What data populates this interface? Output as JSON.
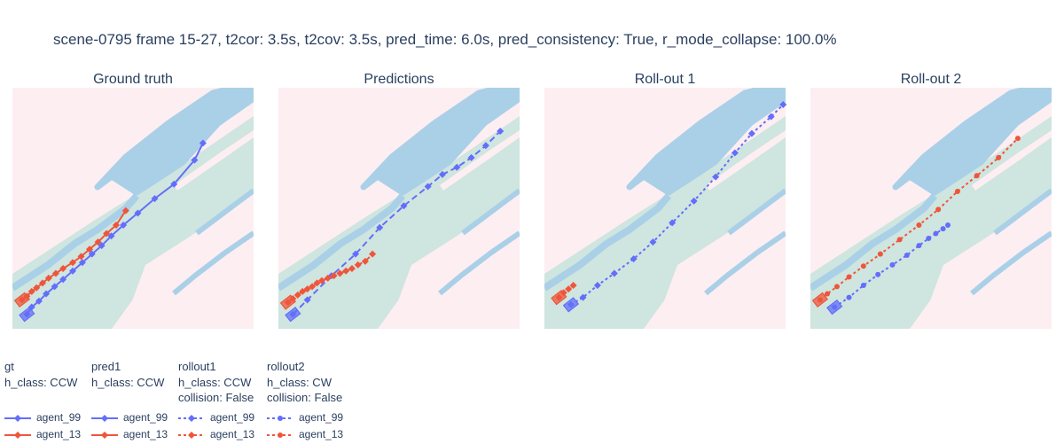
{
  "title": "scene-0795 frame 15-27, t2cor: 3.5s, t2cov: 3.5s, pred_time: 6.0s, pred_consistency: True, r_mode_collapse: 100.0%",
  "colors": {
    "agent_99": "#636efa",
    "agent_13": "#ef553b",
    "background": "#fdeef2",
    "drivable": "#cfe5df",
    "walkway": "#a9d0e7"
  },
  "chart_data": [
    {
      "type": "scatter",
      "title": "Ground truth",
      "xlim": [
        0,
        100
      ],
      "ylim": [
        0,
        100
      ],
      "grid": false,
      "series": [
        {
          "name": "agent_99",
          "line": "solid",
          "marker": "diamond",
          "x": [
            6,
            8,
            11,
            14,
            17.5,
            21,
            25,
            29,
            33,
            37,
            41,
            46,
            52,
            59,
            67,
            75.5,
            79
          ],
          "y": [
            6,
            9,
            11.5,
            14.5,
            17.5,
            20.5,
            24,
            27.5,
            31,
            34.5,
            38.5,
            43,
            48,
            54,
            60,
            70,
            77
          ]
        },
        {
          "name": "agent_13",
          "line": "solid",
          "marker": "diamond",
          "x": [
            4,
            6,
            8,
            10,
            12.5,
            15,
            18,
            21,
            25,
            28.5,
            32,
            35.5,
            39,
            43,
            47
          ],
          "y": [
            12,
            13.5,
            15.5,
            17,
            19,
            21,
            23,
            25,
            27.5,
            30,
            33,
            36,
            39.5,
            43,
            49
          ]
        }
      ]
    },
    {
      "type": "scatter",
      "title": "Predictions",
      "xlim": [
        0,
        100
      ],
      "ylim": [
        0,
        100
      ],
      "grid": false,
      "series": [
        {
          "name": "agent_99",
          "line": "dash",
          "marker": "diamond",
          "x": [
            6,
            12,
            22,
            32,
            42,
            52,
            62,
            68,
            74,
            80,
            86,
            92
          ],
          "y": [
            6,
            12,
            22,
            31,
            42,
            51,
            59,
            64,
            67,
            71,
            76,
            82
          ]
        },
        {
          "name": "agent_13",
          "line": "dash",
          "marker": "diamond",
          "x": [
            4,
            6,
            8,
            10,
            12,
            14,
            16,
            18,
            20.5,
            23,
            25.5,
            28,
            30.5,
            33,
            36,
            39
          ],
          "y": [
            11,
            12.5,
            14,
            15.5,
            16.5,
            17.5,
            19,
            20,
            21,
            22,
            23,
            24,
            25,
            26.5,
            28,
            31
          ]
        }
      ]
    },
    {
      "type": "scatter",
      "title": "Roll-out 1",
      "xlim": [
        0,
        100
      ],
      "ylim": [
        0,
        100
      ],
      "grid": false,
      "series": [
        {
          "name": "agent_99",
          "line": "dot",
          "marker": "diamond",
          "x": [
            11,
            16,
            22,
            29,
            37,
            45,
            53,
            62,
            71,
            79,
            86,
            94,
            99
          ],
          "y": [
            10,
            13,
            18,
            23,
            29,
            36,
            44,
            53,
            63,
            73,
            81,
            88,
            93
          ]
        },
        {
          "name": "agent_13",
          "line": "dot",
          "marker": "diamond",
          "x": [
            6,
            8,
            10,
            12
          ],
          "y": [
            13,
            15,
            16.5,
            18
          ]
        }
      ]
    },
    {
      "type": "scatter",
      "title": "Roll-out 2",
      "xlim": [
        0,
        100
      ],
      "ylim": [
        0,
        100
      ],
      "grid": false,
      "series": [
        {
          "name": "agent_99",
          "line": "dot",
          "marker": "circle",
          "x": [
            10,
            16,
            22,
            28,
            34,
            40,
            45,
            49,
            52,
            55,
            57
          ],
          "y": [
            9,
            13,
            18,
            22.5,
            26.5,
            30.5,
            34.5,
            37.5,
            39.5,
            41.5,
            43
          ]
        },
        {
          "name": "agent_13",
          "line": "dot",
          "marker": "circle",
          "x": [
            4,
            7,
            11,
            16,
            22,
            29,
            37,
            45,
            53,
            61,
            69,
            78,
            86
          ],
          "y": [
            12,
            14.5,
            17.5,
            21.5,
            26,
            31,
            37,
            43,
            49.5,
            57,
            63.5,
            71,
            79
          ]
        }
      ]
    }
  ],
  "legend": [
    {
      "title_lines": [
        "gt",
        "h_class: CCW"
      ],
      "line": "solid",
      "marker": "diamond",
      "entries": [
        "agent_99",
        "agent_13"
      ]
    },
    {
      "title_lines": [
        "pred1",
        "h_class: CCW"
      ],
      "line": "solid",
      "marker": "diamond",
      "entries": [
        "agent_99",
        "agent_13"
      ]
    },
    {
      "title_lines": [
        "rollout1",
        "h_class: CCW",
        "collision: False"
      ],
      "line": "dot",
      "marker": "diamond",
      "entries": [
        "agent_99",
        "agent_13"
      ]
    },
    {
      "title_lines": [
        "rollout2",
        "h_class: CW",
        "collision: False"
      ],
      "line": "dot",
      "marker": "circle",
      "entries": [
        "agent_99",
        "agent_13"
      ]
    }
  ]
}
